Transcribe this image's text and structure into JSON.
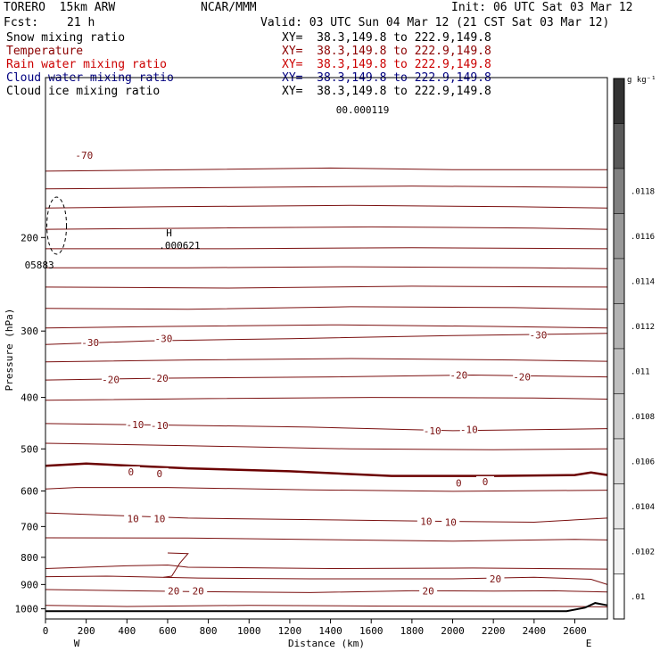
{
  "header": {
    "model": "TORERO  15km ARW",
    "center": "NCAR/MMM",
    "init": "Init: 06 UTC Sat 03 Mar 12",
    "fcst_label": "Fcst:",
    "fcst_value": "21 h",
    "valid": "Valid: 03 UTC Sun 04 Mar 12 (21 CST Sat 03 Mar 12)"
  },
  "fields": [
    {
      "name": "Snow mixing ratio",
      "xy": "XY=  38.3,149.8 to 222.9,149.8",
      "color": "#000000"
    },
    {
      "name": "Temperature",
      "xy": "XY=  38.3,149.8 to 222.9,149.8",
      "color": "#8b0000"
    },
    {
      "name": "Rain water mixing ratio",
      "xy": "XY=  38.3,149.8 to 222.9,149.8",
      "color": "#cc0000"
    },
    {
      "name": "Cloud water mixing ratio",
      "xy": "XY=  38.3,149.8 to 222.9,149.8",
      "color": "#000080"
    },
    {
      "name": "Cloud ice mixing ratio",
      "xy": "XY=  38.3,149.8 to 222.9,149.8",
      "color": "#000000"
    }
  ],
  "chart_data": {
    "type": "cross-section contour",
    "xlabel": "Distance (km)",
    "ylabel": "Pressure (hPa)",
    "xlim": [
      0,
      2760
    ],
    "ylim": [
      1045,
      100
    ],
    "x_ticks": [
      0,
      200,
      400,
      600,
      800,
      1000,
      1200,
      1400,
      1600,
      1800,
      2000,
      2200,
      2400,
      2600
    ],
    "y_ticks": [
      200,
      300,
      400,
      500,
      600,
      700,
      800,
      900,
      1000
    ],
    "y_scale": "log",
    "left_end_label": "W",
    "right_end_label": "E",
    "colorbar": {
      "unit": "g kg⁻¹",
      "ticks": [
        ".01",
        ".0102",
        ".0104",
        ".0106",
        ".0108",
        ".011",
        ".0112",
        ".0114",
        ".0116",
        ".0118"
      ],
      "colors": [
        "#ffffff",
        "#f2f2f2",
        "#e6e6e6",
        "#d9d9d9",
        "#cccccc",
        "#bfbfbf",
        "#b3b3b3",
        "#a6a6a6",
        "#999999",
        "#808080",
        "#595959",
        "#333333"
      ]
    },
    "temperature_contour_labels": [
      {
        "value": "-70",
        "x": 190,
        "p": 140
      },
      {
        "value": "-30",
        "x": 220,
        "p": 315
      },
      {
        "value": "-30",
        "x": 580,
        "p": 310
      },
      {
        "value": "-30",
        "x": 2420,
        "p": 305
      },
      {
        "value": "-20",
        "x": 320,
        "p": 370
      },
      {
        "value": "-20",
        "x": 560,
        "p": 368
      },
      {
        "value": "-20",
        "x": 2030,
        "p": 363
      },
      {
        "value": "-20",
        "x": 2340,
        "p": 366
      },
      {
        "value": "-10",
        "x": 440,
        "p": 450
      },
      {
        "value": "-10",
        "x": 560,
        "p": 452
      },
      {
        "value": "-10",
        "x": 1900,
        "p": 462
      },
      {
        "value": "-10",
        "x": 2080,
        "p": 460
      },
      {
        "value": "0",
        "x": 420,
        "p": 552
      },
      {
        "value": "0",
        "x": 560,
        "p": 556
      },
      {
        "value": "0",
        "x": 2030,
        "p": 579
      },
      {
        "value": "0",
        "x": 2160,
        "p": 576
      },
      {
        "value": "10",
        "x": 430,
        "p": 677
      },
      {
        "value": "10",
        "x": 560,
        "p": 677
      },
      {
        "value": "10",
        "x": 1870,
        "p": 684
      },
      {
        "value": "10",
        "x": 1990,
        "p": 687
      },
      {
        "value": "20",
        "x": 630,
        "p": 925
      },
      {
        "value": "20",
        "x": 750,
        "p": 926
      },
      {
        "value": "20",
        "x": 1880,
        "p": 925
      },
      {
        "value": "20",
        "x": 2210,
        "p": 878
      }
    ],
    "extrema": [
      {
        "mark": "H",
        "value": ".000621",
        "x": 680,
        "p": 207
      },
      {
        "mark": "",
        "value": "05883",
        "x": 20,
        "p": 225
      },
      {
        "mark": "",
        "value": "00.000119",
        "x": 1550,
        "p": 115
      }
    ]
  }
}
